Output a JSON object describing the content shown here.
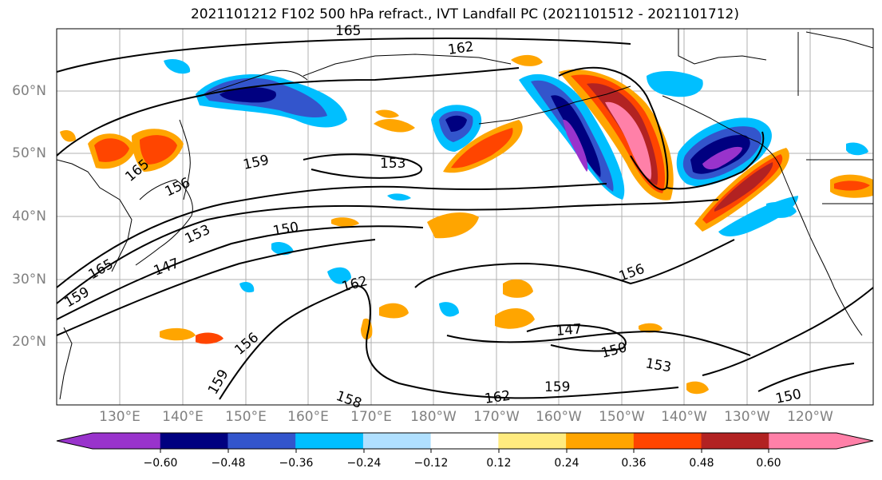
{
  "title": "2021101212 F102 500 hPa refract., IVT Landfall PC (2021101512 - 2021101712)",
  "lat_labels": [
    "60°N",
    "50°N",
    "40°N",
    "30°N",
    "20°N"
  ],
  "lon_labels": [
    "130°E",
    "140°E",
    "150°E",
    "160°E",
    "170°E",
    "180°W",
    "170°W",
    "160°W",
    "150°W",
    "140°W",
    "130°W",
    "120°W"
  ],
  "contour_labels": [
    "165",
    "162",
    "159",
    "153",
    "156",
    "165",
    "150",
    "153",
    "165",
    "147",
    "159",
    "162",
    "156",
    "159",
    "156",
    "158",
    "147",
    "150",
    "153",
    "162",
    "159",
    "150"
  ],
  "colorbar": {
    "colors": [
      "#9933cc",
      "#000080",
      "#3355cc",
      "#00bfff",
      "#b0e0ff",
      "#ffffff",
      "#ffeb7f",
      "#ffa500",
      "#ff4500",
      "#b22222",
      "#ff80a8"
    ],
    "tick_labels": [
      "−0.60",
      "−0.48",
      "−0.36",
      "−0.24",
      "−0.12",
      "0.12",
      "0.24",
      "0.36",
      "0.48",
      "0.60"
    ]
  }
}
